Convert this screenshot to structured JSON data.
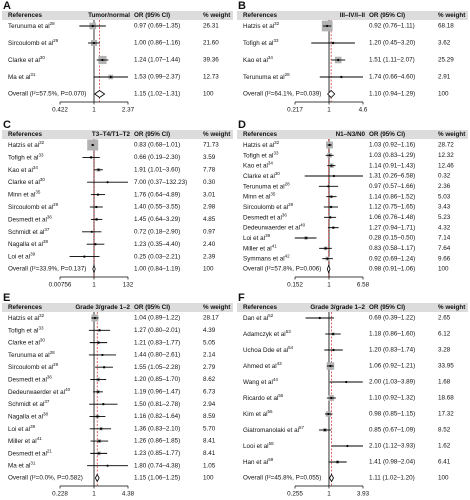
{
  "chart_data": [
    {
      "type": "forest",
      "label": "A",
      "title": "Tumor/normal",
      "columns": [
        "References",
        "OR (95% CI)",
        "% weight"
      ],
      "names": [
        "Terunuma et al",
        "Sircoulomb et al",
        "Clarke et al",
        "Ma et al"
      ],
      "refs": [
        "28",
        "29",
        "30",
        "31"
      ],
      "values": [
        0.97,
        1.0,
        1.24,
        1.53
      ],
      "lower": [
        0.69,
        0.86,
        1.07,
        0.99
      ],
      "upper": [
        1.35,
        1.16,
        1.44,
        2.37
      ],
      "value_labels": [
        "0.97 (0.69–1.35)",
        "1.00 (0.86–1.16)",
        "1.24 (1.07–1.44)",
        "1.53 (0.99–2.37)"
      ],
      "weights": [
        26.31,
        21.6,
        39.36,
        12.73
      ],
      "weight_labels": [
        "26.31",
        "21.60",
        "39.36",
        "12.73"
      ],
      "overall": {
        "label": "Overall (I²=57.5%, P=0.070)",
        "value": 1.15,
        "lower": 1.02,
        "upper": 1.31,
        "value_label": "1.15 (1.02–1.31)",
        "weight": 100
      },
      "xscale": "log",
      "reference_line": 1,
      "xlim": [
        0.422,
        2.37
      ],
      "xticks": [
        0.422,
        1,
        2.37
      ]
    },
    {
      "type": "forest",
      "label": "B",
      "title": "III–IV/I–II",
      "columns": [
        "References",
        "OR (95% CI)",
        "% weight"
      ],
      "names": [
        "Hatzis et al",
        "Tofigh et al",
        "Kao et al",
        "Terunuma et al"
      ],
      "refs": [
        "32",
        "33",
        "34",
        "28"
      ],
      "values": [
        0.92,
        1.2,
        1.51,
        1.74
      ],
      "lower": [
        0.76,
        0.45,
        1.11,
        0.66
      ],
      "upper": [
        1.11,
        3.2,
        2.07,
        4.6
      ],
      "value_labels": [
        "0.92 (0.76–1.11)",
        "1.20 (0.45–3.20)",
        "1.51 (1.11–2.07)",
        "1.74 (0.66–4.60)"
      ],
      "weights": [
        68.18,
        3.62,
        25.29,
        2.91
      ],
      "weight_labels": [
        "68.18",
        "3.62",
        "25.29",
        "2.91"
      ],
      "overall": {
        "label": "Overall (I²=64.1%, P=0.039)",
        "value": 1.1,
        "lower": 0.94,
        "upper": 1.29,
        "value_label": "1.10 (0.94–1.29)",
        "weight": 100
      },
      "xscale": "log",
      "reference_line": 1,
      "xlim": [
        0.217,
        4.6
      ],
      "xticks": [
        0.217,
        1,
        4.6
      ]
    },
    {
      "type": "forest",
      "label": "C",
      "title": "T3–T4/T1–T2",
      "columns": [
        "References",
        "OR (95% CI)",
        "% weight"
      ],
      "names": [
        "Hatzis et al",
        "Tofigh et al",
        "Kao et al",
        "Clarke et al",
        "Minn et al",
        "Sircoulomb et al",
        "Desmedt et al",
        "Schmidt et al",
        "Nagalla et al",
        "Loi et al"
      ],
      "refs": [
        "32",
        "33",
        "34",
        "30",
        "35",
        "29",
        "36",
        "37",
        "38",
        "39"
      ],
      "values": [
        0.83,
        0.66,
        1.91,
        7.0,
        1.76,
        1.4,
        1.45,
        0.72,
        1.23,
        0.25
      ],
      "lower": [
        0.68,
        0.19,
        1.01,
        0.37,
        0.64,
        0.55,
        0.64,
        0.18,
        0.35,
        0.03
      ],
      "upper": [
        1.01,
        2.3,
        3.6,
        132.23,
        4.89,
        3.55,
        3.29,
        2.9,
        4.4,
        2.21
      ],
      "value_labels": [
        "0.83 (0.68–1.01)",
        "0.66 (0.19–2.30)",
        "1.91 (1.01–3.60)",
        "7.00 (0.37–132.23)",
        "1.76 (0.64–4.89)",
        "1.40 (0.55–3.55)",
        "1.45 (0.64–3.29)",
        "0.72 (0.18–2.90)",
        "1.23 (0.35–4.40)",
        "0.25 (0.03–2.21)"
      ],
      "weights": [
        71.73,
        3.59,
        7.78,
        0.3,
        3.01,
        2.98,
        4.85,
        0.97,
        2.4,
        2.39
      ],
      "weight_labels": [
        "71.73",
        "3.59",
        "7.78",
        "0.30",
        "3.01",
        "2.98",
        "4.85",
        "0.97",
        "2.40",
        "2.39"
      ],
      "overall": {
        "label": "Overall (I²=33.9%, P=0.137)",
        "value": 1.0,
        "lower": 0.84,
        "upper": 1.19,
        "value_label": "1.00 (0.84–1.19)",
        "weight": 100
      },
      "xscale": "log",
      "reference_line": 1,
      "xlim": [
        0.00756,
        132
      ],
      "xticks": [
        0.00756,
        1,
        132
      ]
    },
    {
      "type": "forest",
      "label": "D",
      "title": "N1–N3/N0",
      "columns": [
        "References",
        "OR (95% CI)",
        "% weight"
      ],
      "names": [
        "Hatzis et al",
        "Tofigh et al",
        "Kao et al",
        "Clarke et al",
        "Terunuma et al",
        "Minn et al",
        "Sircoulomb et al",
        "Desmedt et al",
        "Dedeurwaerder et al",
        "Loi et al",
        "Miller et al",
        "Symmans et al"
      ],
      "refs": [
        "32",
        "33",
        "34",
        "30",
        "28",
        "35",
        "29",
        "36",
        "40",
        "39",
        "41",
        "42"
      ],
      "values": [
        1.03,
        1.03,
        1.14,
        1.31,
        0.97,
        1.14,
        1.12,
        1.06,
        1.27,
        0.28,
        0.83,
        0.92
      ],
      "lower": [
        0.92,
        0.83,
        0.91,
        0.26,
        0.57,
        0.86,
        0.75,
        0.76,
        0.94,
        0.15,
        0.58,
        0.69
      ],
      "upper": [
        1.16,
        1.29,
        1.43,
        6.58,
        1.66,
        1.52,
        1.65,
        1.48,
        1.71,
        0.5,
        1.17,
        1.24
      ],
      "value_labels": [
        "1.03 (0.92–1.16)",
        "1.03 (0.83–1.29)",
        "1.14 (0.91–1.43)",
        "1.31 (0.26–6.58)",
        "0.97 (0.57–1.66)",
        "1.14 (0.86–1.52)",
        "1.12 (0.75–1.65)",
        "1.06 (0.76–1.48)",
        "1.27 (0.94–1.71)",
        "0.28 (0.15–0.50)",
        "0.83 (0.58–1.17)",
        "0.92 (0.69–1.24)"
      ],
      "weights": [
        28.72,
        12.32,
        12.46,
        0.32,
        2.36,
        5.03,
        3.43,
        5.23,
        4.32,
        7.14,
        7.64,
        9.66
      ],
      "weight_labels": [
        "28.72",
        "12.32",
        "12.46",
        "0.32",
        "2.36",
        "5.03",
        "3.43",
        "5.23",
        "4.32",
        "7.14",
        "7.64",
        "9.66"
      ],
      "overall": {
        "label": "Overall (I²=57.8%, P=0.006)",
        "value": 0.98,
        "lower": 0.91,
        "upper": 1.06,
        "value_label": "0.98 (0.91–1.06)",
        "weight": 100
      },
      "xscale": "log",
      "reference_line": 1,
      "xlim": [
        0.152,
        6.58
      ],
      "xticks": [
        0.152,
        1,
        6.58
      ]
    },
    {
      "type": "forest",
      "label": "E",
      "title": "Grade 3/grade 1–2",
      "columns": [
        "References",
        "OR (95% CI)",
        "% weight"
      ],
      "names": [
        "Hatzis et al",
        "Tofigh et al",
        "Clarke et al",
        "Terunuma et al",
        "Sircoulomb et al",
        "Desmedt et al",
        "Dedeurwaerder et al",
        "Schmidt et al",
        "Nagalla et al",
        "Loi et al",
        "Miller et al",
        "Desmedt et al",
        "Ma et al"
      ],
      "refs": [
        "32",
        "33",
        "30",
        "28",
        "29",
        "36",
        "40",
        "37",
        "38",
        "39",
        "41",
        "21",
        "31"
      ],
      "values": [
        1.04,
        1.27,
        1.21,
        1.44,
        1.55,
        1.2,
        1.19,
        1.5,
        1.16,
        1.36,
        1.26,
        1.23,
        1.8
      ],
      "lower": [
        0.89,
        0.8,
        0.83,
        0.8,
        1.05,
        0.85,
        0.96,
        0.81,
        0.82,
        0.83,
        0.86,
        0.85,
        0.74
      ],
      "upper": [
        1.22,
        2.01,
        1.77,
        2.61,
        2.28,
        1.7,
        1.47,
        2.78,
        1.64,
        2.1,
        1.85,
        1.77,
        4.38
      ],
      "value_labels": [
        "1.04 (0.89–1.22)",
        "1.27 (0.80–2.01)",
        "1.21 (0.83–1.77)",
        "1.44 (0.80–2.61)",
        "1.55 (1.05–2.28)",
        "1.20 (0.85–1.70)",
        "1.19 (0.96–1.47)",
        "1.50 (0.81–2.78)",
        "1.16 (0.82–1.64)",
        "1.36 (0.83–2.10)",
        "1.26 (0.86–1.85)",
        "1.23 (0.85–1.77)",
        "1.80 (0.74–4.38)"
      ],
      "weights": [
        28.17,
        4.39,
        5.05,
        2.14,
        2.79,
        8.62,
        6.73,
        2.94,
        8.59,
        5.7,
        8.41,
        8.41,
        1.05
      ],
      "weight_labels": [
        "28.17",
        "4.39",
        "5.05",
        "2.14",
        "2.79",
        "8.62",
        "6.73",
        "2.94",
        "8.59",
        "5.70",
        "8.41",
        "8.41",
        "1.05"
      ],
      "overall": {
        "label": "Overall (I²=0.0%, P=0.582)",
        "value": 1.15,
        "lower": 1.06,
        "upper": 1.25,
        "value_label": "1.15 (1.06–1.25)",
        "weight": 100
      },
      "xscale": "log",
      "reference_line": 1,
      "xlim": [
        0.228,
        4.38
      ],
      "xticks": [
        0.228,
        1,
        4.38
      ]
    },
    {
      "type": "forest",
      "label": "F",
      "title": "Grade 3/grade 1–2",
      "columns": [
        "References",
        "OR (95% CI)",
        "% weight"
      ],
      "names": [
        "Dan et al",
        "Adamczyk et al",
        "Uchoa Dde et al",
        "Ahmed et al",
        "Wang et al",
        "Ricardo et al",
        "Kim et al",
        "Giatromanolaki et al",
        "Looi et al",
        "Han et al"
      ],
      "refs": [
        "52",
        "53",
        "54",
        "43",
        "44",
        "55",
        "56",
        "57",
        "58",
        "59"
      ],
      "values": [
        0.69,
        1.18,
        1.2,
        1.06,
        2.0,
        1.1,
        0.98,
        0.85,
        2.1,
        1.41
      ],
      "lower": [
        0.39,
        0.86,
        0.83,
        0.92,
        1.03,
        0.92,
        0.85,
        0.67,
        1.12,
        0.98
      ],
      "upper": [
        1.22,
        1.6,
        1.74,
        1.21,
        3.89,
        1.32,
        1.15,
        1.09,
        3.93,
        2.04
      ],
      "value_labels": [
        "0.69 (0.39–1.22)",
        "1.18 (0.86–1.60)",
        "1.20 (0.83–1.74)",
        "1.06 (0.92–1.21)",
        "2.00 (1.03–3.89)",
        "1.10 (0.92–1.32)",
        "0.98 (0.85–1.15)",
        "0.85 (0.67–1.09)",
        "2.10 (1.12–3.93)",
        "1.41 (0.98–2.04)"
      ],
      "weights": [
        2.65,
        6.12,
        3.28,
        33.95,
        1.68,
        18.68,
        17.32,
        8.52,
        1.62,
        6.41
      ],
      "weight_labels": [
        "2.65",
        "6.12",
        "3.28",
        "33.95",
        "1.68",
        "18.68",
        "17.32",
        "8.52",
        "1.62",
        "6.41"
      ],
      "overall": {
        "label": "Overall (I²=45.8%, P=0.055)",
        "value": 1.11,
        "lower": 1.02,
        "upper": 1.2,
        "value_label": "1.11 (1.02–1.20)",
        "weight": 100
      },
      "xscale": "log",
      "reference_line": 1,
      "xlim": [
        0.255,
        3.93
      ],
      "xticks": [
        0.255,
        1,
        3.93
      ]
    }
  ]
}
